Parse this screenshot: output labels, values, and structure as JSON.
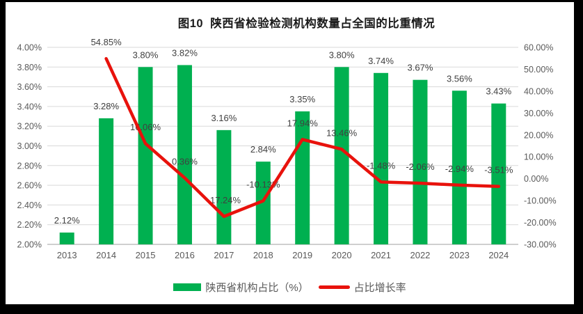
{
  "frame": {
    "background": "#000000",
    "panel_background": "#ffffff"
  },
  "chart_data": {
    "type": "combo",
    "title": "图10  陕西省检验检测机构数量占全国的比重情况",
    "categories": [
      "2013",
      "2014",
      "2015",
      "2016",
      "2017",
      "2018",
      "2019",
      "2020",
      "2021",
      "2022",
      "2023",
      "2024"
    ],
    "series": [
      {
        "name": "陕西省机构占比（%）",
        "type": "bar",
        "axis": "left",
        "color": "#00b050",
        "values": [
          2.12,
          3.28,
          3.8,
          3.82,
          3.16,
          2.84,
          3.35,
          3.8,
          3.74,
          3.67,
          3.56,
          3.43
        ],
        "labels": [
          "2.12%",
          "3.28%",
          "3.80%",
          "3.82%",
          "3.16%",
          "2.84%",
          "3.35%",
          "3.80%",
          "3.74%",
          "3.67%",
          "3.56%",
          "3.43%"
        ]
      },
      {
        "name": "占比增长率",
        "type": "line",
        "axis": "right",
        "color": "#e8120c",
        "values": [
          null,
          54.85,
          16.06,
          0.36,
          -17.24,
          -10.13,
          17.94,
          13.46,
          -1.48,
          -2.06,
          -2.94,
          -3.51
        ],
        "labels": [
          null,
          "54.85%",
          "16.06%",
          "0.36%",
          "-17.24%",
          "-10.13%",
          "17.94%",
          "13.46%",
          "-1.48%",
          "-2.06%",
          "-2.94%",
          "-3.51%"
        ]
      }
    ],
    "left_axis": {
      "min": 2.0,
      "max": 4.0,
      "step": 0.2,
      "ticks": [
        "4.00%",
        "3.80%",
        "3.60%",
        "3.40%",
        "3.20%",
        "3.00%",
        "2.80%",
        "2.60%",
        "2.40%",
        "2.20%",
        "2.00%"
      ]
    },
    "right_axis": {
      "min": -30,
      "max": 60,
      "step": 10,
      "ticks": [
        "60.00%",
        "50.00%",
        "40.00%",
        "30.00%",
        "20.00%",
        "10.00%",
        "0.00%",
        "-10.00%",
        "-20.00%",
        "-30.00%"
      ]
    },
    "legend": {
      "position": "bottom",
      "entries": [
        {
          "label": "陕西省机构占比（%）",
          "swatch": "bar",
          "color": "#00b050"
        },
        {
          "label": "占比增长率",
          "swatch": "line",
          "color": "#e8120c"
        }
      ]
    },
    "grid": true,
    "gridline_color": "#d9d9d9",
    "axis_line_color": "#bfbfbf",
    "axis_text_color": "#595959",
    "label_color": "#404040"
  }
}
